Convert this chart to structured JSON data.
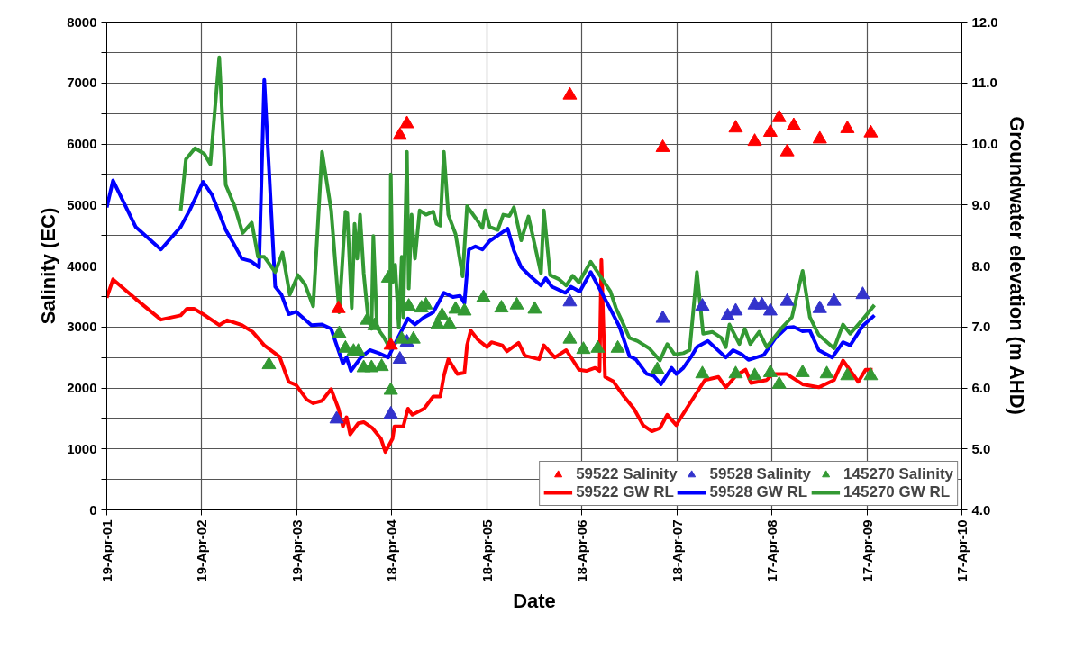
{
  "chart_data": {
    "type": "line",
    "xlabel": "Date",
    "ylabel": "Salinity (EC)",
    "y2label": "Groundwater elevation (m AHD)",
    "xlim": [
      "2001-04-19",
      "2010-04-17"
    ],
    "xticks": [
      {
        "value": "2001-04-19",
        "label": "19-Apr-01"
      },
      {
        "value": "2002-04-19",
        "label": "19-Apr-02"
      },
      {
        "value": "2003-04-19",
        "label": "19-Apr-03"
      },
      {
        "value": "2004-04-18",
        "label": "18-Apr-04"
      },
      {
        "value": "2005-04-18",
        "label": "18-Apr-05"
      },
      {
        "value": "2006-04-18",
        "label": "18-Apr-06"
      },
      {
        "value": "2007-04-18",
        "label": "18-Apr-07"
      },
      {
        "value": "2008-04-17",
        "label": "17-Apr-08"
      },
      {
        "value": "2009-04-17",
        "label": "17-Apr-09"
      },
      {
        "value": "2010-04-17",
        "label": "17-Apr-10"
      }
    ],
    "ylim": [
      0,
      8000
    ],
    "yticks": [
      0,
      {
        "value": 500,
        "label": null
      },
      1000,
      {
        "value": 1500,
        "label": null
      },
      2000,
      {
        "value": 2500,
        "label": null
      },
      3000,
      {
        "value": 3500,
        "label": null
      },
      4000,
      {
        "value": 4500,
        "label": null
      },
      5000,
      {
        "value": 5500,
        "label": null
      },
      6000,
      {
        "value": 6500,
        "label": null
      },
      7000,
      {
        "value": 7500,
        "label": null
      },
      8000
    ],
    "y2lim": [
      4,
      12
    ],
    "y2ticks": [
      {
        "value": 4,
        "label": "4.0"
      },
      {
        "value": 5,
        "label": "5.0"
      },
      {
        "value": 6,
        "label": "6.0"
      },
      {
        "value": 7,
        "label": "7.0"
      },
      {
        "value": 8,
        "label": "8.0"
      },
      {
        "value": 9,
        "label": "9.0"
      },
      {
        "value": 10,
        "label": "10.0"
      },
      {
        "value": 11,
        "label": "11.0"
      },
      {
        "value": 12,
        "label": "12.0"
      }
    ],
    "grid": true,
    "legend": "bottom right",
    "series": [
      {
        "name": "59522 Salinity",
        "type": "scatter",
        "marker": "triangle",
        "color": "#ff0000",
        "x": [
          "2003-09-26",
          "2004-04-14",
          "2004-05-19",
          "2004-06-15",
          "2006-03-03",
          "2007-02-23",
          "2007-11-30",
          "2008-02-11",
          "2008-04-11",
          "2008-05-15",
          "2008-06-15",
          "2008-07-10",
          "2008-10-18",
          "2009-02-01",
          "2009-05-02"
        ],
        "values": [
          3300,
          2700,
          6140,
          6330,
          6800,
          5940,
          6260,
          6040,
          6190,
          6430,
          5870,
          6300,
          6080,
          6250,
          6180
        ]
      },
      {
        "name": "59522 GW RL",
        "axis": "y2",
        "color": "#ff0000",
        "x": [
          "2001-04-19",
          "2001-05-13",
          "2001-08-08",
          "2001-11-13",
          "2002-01-28",
          "2002-02-21",
          "2002-03-20",
          "2002-04-24",
          "2002-06-25",
          "2002-07-26",
          "2002-09-20",
          "2002-10-31",
          "2002-12-15",
          "2003-02-12",
          "2003-03-19",
          "2003-04-16",
          "2003-05-27",
          "2003-06-21",
          "2003-07-25",
          "2003-08-29",
          "2003-09-26",
          "2003-10-13",
          "2003-10-27",
          "2003-11-10",
          "2003-12-11",
          "2004-01-01",
          "2004-02-04",
          "2004-03-07",
          "2004-03-24",
          "2004-04-21",
          "2004-04-28",
          "2004-06-01",
          "2004-06-19",
          "2004-07-06",
          "2004-08-20",
          "2004-09-24",
          "2004-10-21",
          "2004-11-04",
          "2004-11-21",
          "2004-12-26",
          "2005-01-22",
          "2005-02-01",
          "2005-02-15",
          "2005-03-15",
          "2005-04-19",
          "2005-05-06",
          "2005-06-16",
          "2005-07-04",
          "2005-08-18",
          "2005-09-11",
          "2005-11-05",
          "2005-11-23",
          "2006-01-04",
          "2006-02-17",
          "2006-04-07",
          "2006-05-05",
          "2006-06-08",
          "2006-06-25",
          "2006-07-02",
          "2006-07-16",
          "2006-08-16",
          "2006-09-27",
          "2006-11-04",
          "2006-12-09",
          "2007-01-12",
          "2007-02-12",
          "2007-03-12",
          "2007-04-16",
          "2007-05-10",
          "2007-06-24",
          "2007-08-04",
          "2007-09-25",
          "2007-10-23",
          "2007-12-03",
          "2008-01-07",
          "2008-01-28",
          "2008-03-28",
          "2008-04-21",
          "2008-06-12",
          "2008-08-13",
          "2008-10-14",
          "2008-12-12",
          "2009-01-15",
          "2009-03-15",
          "2009-04-12",
          "2009-05-09"
        ],
        "values": [
          7.48,
          7.78,
          7.46,
          7.12,
          7.19,
          7.3,
          7.3,
          7.21,
          7.03,
          7.11,
          7.03,
          6.92,
          6.7,
          6.51,
          6.1,
          6.05,
          5.81,
          5.75,
          5.79,
          5.98,
          5.66,
          5.37,
          5.52,
          5.24,
          5.42,
          5.44,
          5.34,
          5.17,
          4.95,
          5.17,
          5.37,
          5.37,
          5.66,
          5.56,
          5.66,
          5.86,
          5.86,
          6.2,
          6.47,
          6.23,
          6.25,
          6.7,
          6.94,
          6.79,
          6.67,
          6.75,
          6.7,
          6.6,
          6.74,
          6.53,
          6.47,
          6.7,
          6.5,
          6.62,
          6.3,
          6.28,
          6.33,
          6.28,
          8.1,
          6.18,
          6.11,
          5.86,
          5.66,
          5.39,
          5.29,
          5.34,
          5.56,
          5.39,
          5.56,
          5.86,
          6.13,
          6.18,
          6.01,
          6.21,
          6.3,
          6.08,
          6.13,
          6.23,
          6.23,
          6.06,
          6.01,
          6.13,
          6.45,
          6.1,
          6.3,
          6.3
        ]
      },
      {
        "name": "59528 Salinity",
        "type": "scatter",
        "marker": "triangle",
        "color": "#3333cc",
        "x": [
          "2003-09-19",
          "2004-04-14",
          "2004-05-19",
          "2004-06-15",
          "2006-03-03",
          "2007-02-23",
          "2007-07-25",
          "2007-10-30",
          "2007-11-30",
          "2008-02-11",
          "2008-03-10",
          "2008-04-11",
          "2008-06-15",
          "2008-10-18",
          "2008-12-12",
          "2009-04-01"
        ],
        "values": [
          1490,
          1570,
          2470,
          2750,
          3410,
          3140,
          3340,
          3180,
          3260,
          3360,
          3360,
          3260,
          3420,
          3300,
          3420,
          3530
        ]
      },
      {
        "name": "59528 GW RL",
        "axis": "y2",
        "color": "#0000ff",
        "x": [
          "2001-04-19",
          "2001-05-13",
          "2001-08-08",
          "2001-11-13",
          "2002-01-28",
          "2002-03-03",
          "2002-04-24",
          "2002-05-29",
          "2002-07-20",
          "2002-08-16",
          "2002-09-20",
          "2002-10-24",
          "2002-11-25",
          "2002-12-15",
          "2003-01-26",
          "2003-02-19",
          "2003-03-19",
          "2003-04-16",
          "2003-06-14",
          "2003-07-25",
          "2003-08-29",
          "2003-10-13",
          "2003-10-27",
          "2003-11-13",
          "2003-12-21",
          "2004-01-25",
          "2004-02-28",
          "2004-04-04",
          "2004-05-08",
          "2004-06-19",
          "2004-07-16",
          "2004-08-20",
          "2004-09-24",
          "2004-11-04",
          "2004-12-09",
          "2005-01-05",
          "2005-01-22",
          "2005-02-08",
          "2005-03-05",
          "2005-04-01",
          "2005-04-29",
          "2005-06-03",
          "2005-07-07",
          "2005-07-31",
          "2005-08-28",
          "2005-10-02",
          "2005-11-12",
          "2005-11-30",
          "2005-12-24",
          "2006-02-14",
          "2006-03-07",
          "2006-04-10",
          "2006-05-22",
          "2006-08-06",
          "2006-09-10",
          "2006-10-18",
          "2006-11-11",
          "2006-12-23",
          "2007-01-19",
          "2007-02-16",
          "2007-03-29",
          "2007-04-16",
          "2007-05-13",
          "2007-06-13",
          "2007-07-04",
          "2007-08-15",
          "2007-10-23",
          "2007-11-20",
          "2007-12-24",
          "2008-01-18",
          "2008-03-17",
          "2008-05-01",
          "2008-06-12",
          "2008-07-10",
          "2008-08-13",
          "2008-09-10",
          "2008-10-14",
          "2008-12-05",
          "2009-01-15",
          "2009-02-12",
          "2009-04-01",
          "2009-05-16"
        ],
        "values": [
          8.96,
          9.4,
          8.64,
          8.27,
          8.64,
          8.91,
          9.38,
          9.16,
          8.59,
          8.39,
          8.12,
          8.08,
          7.98,
          11.05,
          7.66,
          7.53,
          7.21,
          7.25,
          7.03,
          7.04,
          6.97,
          6.4,
          6.5,
          6.28,
          6.5,
          6.62,
          6.57,
          6.5,
          6.79,
          7.14,
          7.04,
          7.16,
          7.24,
          7.56,
          7.49,
          7.51,
          7.39,
          8.27,
          8.32,
          8.27,
          8.41,
          8.51,
          8.61,
          8.25,
          7.98,
          7.83,
          7.68,
          7.8,
          7.66,
          7.56,
          7.66,
          7.58,
          7.9,
          7.29,
          7.0,
          6.52,
          6.47,
          6.23,
          6.2,
          6.06,
          6.33,
          6.23,
          6.33,
          6.52,
          6.67,
          6.77,
          6.5,
          6.62,
          6.55,
          6.46,
          6.54,
          6.82,
          6.99,
          7.0,
          6.93,
          6.94,
          6.62,
          6.5,
          6.75,
          6.7,
          7.02,
          7.19
        ]
      },
      {
        "name": "145270 Salinity",
        "type": "scatter",
        "marker": "triangle",
        "color": "#339933",
        "x": [
          "2003-01-02",
          "2003-09-29",
          "2003-10-23",
          "2003-11-23",
          "2003-12-11",
          "2004-01-01",
          "2004-01-14",
          "2004-01-31",
          "2004-02-11",
          "2004-03-10",
          "2004-04-04",
          "2004-04-14",
          "2004-05-26",
          "2004-06-22",
          "2004-07-10",
          "2004-08-10",
          "2004-08-27",
          "2004-10-11",
          "2004-10-28",
          "2004-11-25",
          "2004-12-19",
          "2005-01-22",
          "2005-04-05",
          "2005-06-13",
          "2005-08-11",
          "2005-10-19",
          "2006-03-03",
          "2006-04-24",
          "2006-06-18",
          "2006-09-03",
          "2007-02-02",
          "2007-07-25",
          "2007-11-30",
          "2008-02-11",
          "2008-04-11",
          "2008-05-15",
          "2008-08-13",
          "2008-11-14",
          "2009-02-01",
          "2009-05-02"
        ],
        "values": [
          2380,
          2890,
          2650,
          2600,
          2600,
          2330,
          3110,
          2330,
          3020,
          2350,
          3800,
          1960,
          2800,
          3340,
          2800,
          3310,
          3360,
          3040,
          3190,
          3040,
          3290,
          3260,
          3480,
          3310,
          3360,
          3290,
          2800,
          2630,
          2650,
          2650,
          2300,
          2230,
          2230,
          2200,
          2250,
          2060,
          2250,
          2230,
          2200,
          2200
        ]
      },
      {
        "name": "145270 GW RL",
        "axis": "y2",
        "color": "#339933",
        "x": [
          "2002-01-28",
          "2002-02-17",
          "2002-03-24",
          "2002-04-28",
          "2002-05-22",
          "2002-06-25",
          "2002-07-20",
          "2002-08-23",
          "2002-09-23",
          "2002-10-28",
          "2002-11-21",
          "2002-12-15",
          "2003-01-26",
          "2003-02-23",
          "2003-03-23",
          "2003-04-23",
          "2003-05-20",
          "2003-06-21",
          "2003-07-25",
          "2003-08-29",
          "2003-09-29",
          "2003-10-23",
          "2003-10-30",
          "2003-11-16",
          "2003-11-27",
          "2003-12-07",
          "2003-12-18",
          "2004-01-01",
          "2004-01-18",
          "2004-01-31",
          "2004-02-07",
          "2004-02-21",
          "2004-03-17",
          "2004-04-11",
          "2004-04-14",
          "2004-04-21",
          "2004-05-01",
          "2004-05-15",
          "2004-05-26",
          "2004-06-01",
          "2004-06-15",
          "2004-06-22",
          "2004-07-03",
          "2004-07-16",
          "2004-08-03",
          "2004-08-27",
          "2004-09-24",
          "2004-10-07",
          "2004-10-21",
          "2004-11-04",
          "2004-11-21",
          "2004-12-19",
          "2005-01-15",
          "2005-02-01",
          "2005-03-05",
          "2005-04-01",
          "2005-04-12",
          "2005-04-29",
          "2005-05-30",
          "2005-06-20",
          "2005-07-14",
          "2005-07-31",
          "2005-08-28",
          "2005-09-25",
          "2005-11-12",
          "2005-11-23",
          "2005-12-17",
          "2006-01-21",
          "2006-02-17",
          "2006-03-14",
          "2006-04-07",
          "2006-05-22",
          "2006-08-06",
          "2006-08-27",
          "2006-09-20",
          "2006-10-18",
          "2006-11-18",
          "2007-01-02",
          "2007-02-12",
          "2007-03-12",
          "2007-04-09",
          "2007-05-13",
          "2007-06-06",
          "2007-07-04",
          "2007-07-28",
          "2007-09-01",
          "2007-10-06",
          "2007-10-23",
          "2007-11-06",
          "2007-12-14",
          "2008-01-04",
          "2008-01-25",
          "2008-02-28",
          "2008-03-28",
          "2008-05-26",
          "2008-07-03",
          "2008-08-13",
          "2008-09-10",
          "2008-10-14",
          "2008-12-12",
          "2009-01-15",
          "2009-02-12",
          "2009-03-25",
          "2009-05-16"
        ],
        "values": [
          8.91,
          9.75,
          9.93,
          9.84,
          9.67,
          11.42,
          9.33,
          8.98,
          8.54,
          8.71,
          8.15,
          8.15,
          7.9,
          8.22,
          7.53,
          7.85,
          7.7,
          7.34,
          9.87,
          8.91,
          7.24,
          8.89,
          8.86,
          7.31,
          8.69,
          8.12,
          8.84,
          7.88,
          7.14,
          6.97,
          8.49,
          6.99,
          6.84,
          6.65,
          9.5,
          7.73,
          8.02,
          6.99,
          8.15,
          7.16,
          9.87,
          7.63,
          8.84,
          8.12,
          8.91,
          8.84,
          8.89,
          8.69,
          8.66,
          9.87,
          8.84,
          8.52,
          7.83,
          8.98,
          8.79,
          8.62,
          8.91,
          8.64,
          8.59,
          8.84,
          8.82,
          8.96,
          8.42,
          8.81,
          7.88,
          8.91,
          7.85,
          7.78,
          7.68,
          7.84,
          7.73,
          8.07,
          7.58,
          7.31,
          7.09,
          6.82,
          6.77,
          6.65,
          6.45,
          6.72,
          6.55,
          6.57,
          6.62,
          7.9,
          6.89,
          6.92,
          6.82,
          6.67,
          7.04,
          6.72,
          6.97,
          6.72,
          6.92,
          6.67,
          6.99,
          7.16,
          7.92,
          7.16,
          6.87,
          6.65,
          7.04,
          6.89,
          7.09,
          7.36
        ]
      }
    ]
  }
}
